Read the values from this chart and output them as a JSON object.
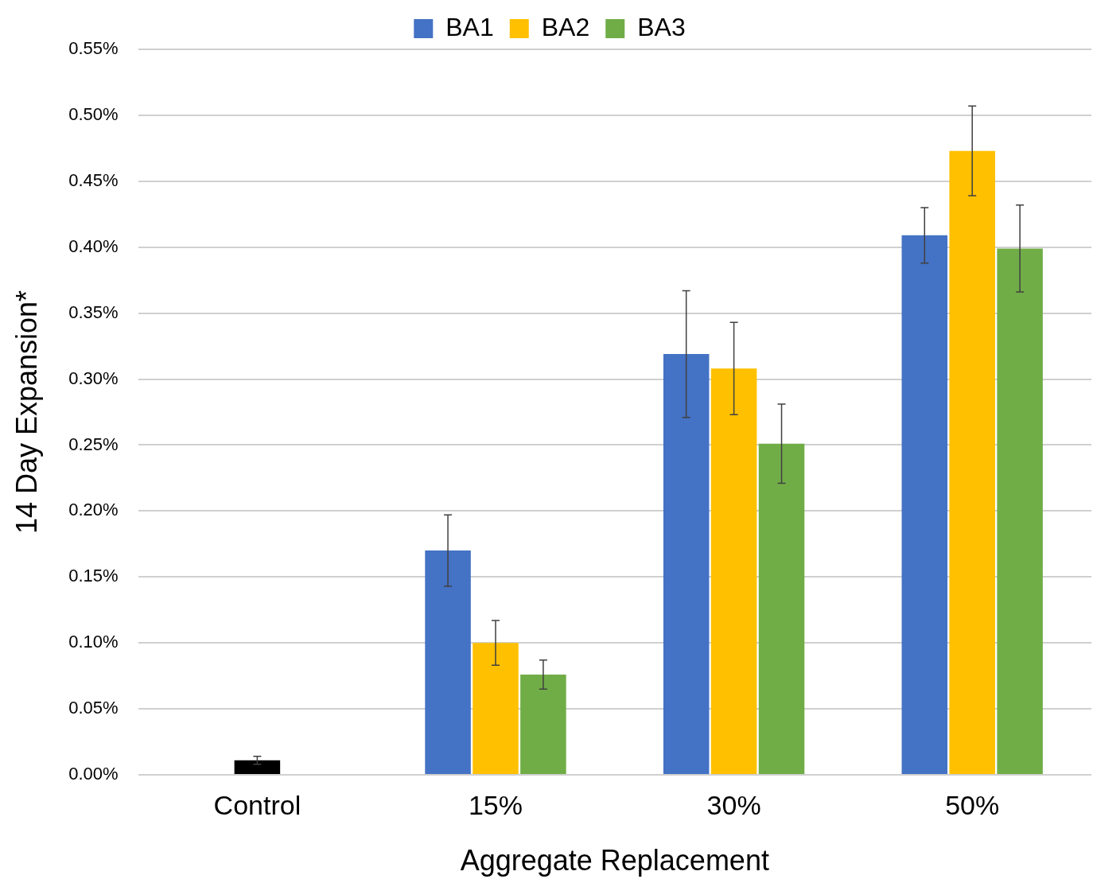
{
  "chart_data": {
    "type": "bar",
    "xlabel": "Aggregate Replacement",
    "ylabel": "14 Day Expansion*",
    "categories": [
      "Control",
      "15%",
      "30%",
      "50%"
    ],
    "series": [
      {
        "color": "#000000",
        "values": [
          0.011,
          null,
          null,
          null
        ],
        "errors": [
          0.003,
          null,
          null,
          null
        ]
      },
      {
        "name": "BA1",
        "color": "#4472c4",
        "values": [
          null,
          0.17,
          0.319,
          0.409
        ],
        "errors": [
          null,
          0.027,
          0.048,
          0.021
        ]
      },
      {
        "name": "BA2",
        "color": "#ffc000",
        "values": [
          null,
          0.1,
          0.308,
          0.473
        ],
        "errors": [
          null,
          0.017,
          0.035,
          0.034
        ]
      },
      {
        "name": "BA3",
        "color": "#70ad47",
        "values": [
          null,
          0.076,
          0.251,
          0.399
        ],
        "errors": [
          null,
          0.011,
          0.03,
          0.033
        ]
      }
    ],
    "ylim": [
      0,
      0.55
    ],
    "yticks": [
      {
        "value": 0,
        "label": "0.00%"
      },
      {
        "value": 0.05,
        "label": "0.05%"
      },
      {
        "value": 0.1,
        "label": "0.10%"
      },
      {
        "value": 0.15,
        "label": "0.15%"
      },
      {
        "value": 0.2,
        "label": "0.20%"
      },
      {
        "value": 0.25,
        "label": "0.25%"
      },
      {
        "value": 0.3,
        "label": "0.30%"
      },
      {
        "value": 0.35,
        "label": "0.35%"
      },
      {
        "value": 0.4,
        "label": "0.40%"
      },
      {
        "value": 0.45,
        "label": "0.45%"
      },
      {
        "value": 0.5,
        "label": "0.50%"
      },
      {
        "value": 0.55,
        "label": "0.55%"
      }
    ],
    "grid": "y",
    "legend": "top"
  }
}
